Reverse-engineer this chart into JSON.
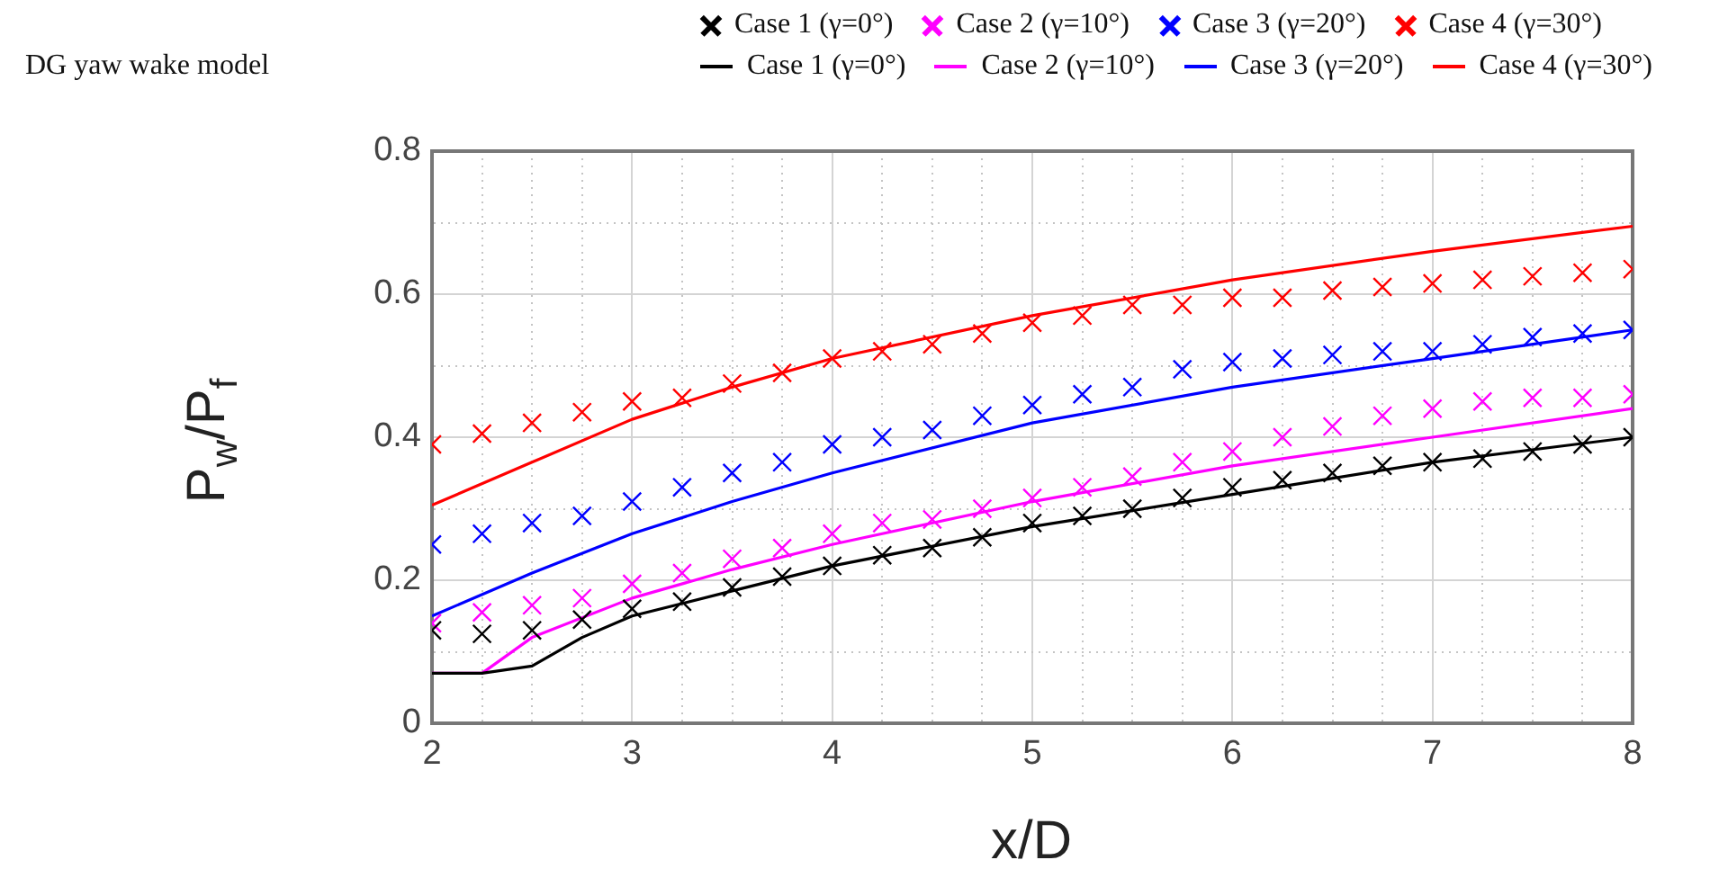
{
  "chart_data": {
    "type": "scatter",
    "xlabel": "x/D",
    "ylabel": "P$_{w}$/P$_{f}$",
    "annotations": [
      "DG yaw wake model"
    ],
    "x": [
      2,
      2.25,
      2.5,
      2.75,
      3,
      3.25,
      3.5,
      3.75,
      4,
      4.25,
      4.5,
      4.75,
      5,
      5.25,
      5.5,
      5.75,
      6,
      6.25,
      6.5,
      6.75,
      7,
      7.25,
      7.5,
      7.75,
      8
    ],
    "series": [
      {
        "name": "Case 1 (γ=0°)",
        "type": "scatter",
        "marker": "cross",
        "color": "#000000",
        "values": [
          0.13,
          0.125,
          0.13,
          0.145,
          0.16,
          0.17,
          0.19,
          0.205,
          0.22,
          0.235,
          0.245,
          0.26,
          0.28,
          0.29,
          0.3,
          0.315,
          0.33,
          0.34,
          0.35,
          0.36,
          0.365,
          0.37,
          0.38,
          0.39,
          0.4
        ]
      },
      {
        "name": "Case 2 (γ=10°)",
        "type": "scatter",
        "marker": "cross",
        "color": "#ff00ff",
        "values": [
          0.14,
          0.155,
          0.165,
          0.175,
          0.195,
          0.21,
          0.23,
          0.245,
          0.265,
          0.28,
          0.285,
          0.3,
          0.315,
          0.33,
          0.345,
          0.365,
          0.38,
          0.4,
          0.415,
          0.43,
          0.44,
          0.45,
          0.455,
          0.455,
          0.46
        ]
      },
      {
        "name": "Case 3 (γ=20°)",
        "type": "scatter",
        "marker": "cross",
        "color": "#0000ff",
        "values": [
          0.25,
          0.265,
          0.28,
          0.29,
          0.31,
          0.33,
          0.35,
          0.365,
          0.39,
          0.4,
          0.41,
          0.43,
          0.445,
          0.46,
          0.47,
          0.495,
          0.505,
          0.51,
          0.515,
          0.52,
          0.52,
          0.53,
          0.54,
          0.545,
          0.55
        ]
      },
      {
        "name": "Case 4 (γ=30°)",
        "type": "scatter",
        "marker": "cross",
        "color": "#ff0000",
        "values": [
          0.39,
          0.405,
          0.42,
          0.435,
          0.45,
          0.455,
          0.475,
          0.49,
          0.51,
          0.52,
          0.53,
          0.545,
          0.56,
          0.57,
          0.585,
          0.585,
          0.595,
          0.595,
          0.605,
          0.61,
          0.615,
          0.62,
          0.625,
          0.63,
          0.635
        ]
      },
      {
        "name": "Case 1 (γ=0°)",
        "type": "line",
        "marker": "none",
        "line_style": "solid",
        "color": "#000000",
        "x": [
          2,
          2.25,
          2.5,
          2.75,
          3,
          3.5,
          4,
          5,
          6,
          7,
          8
        ],
        "values": [
          0.07,
          0.07,
          0.08,
          0.12,
          0.15,
          0.185,
          0.22,
          0.275,
          0.32,
          0.365,
          0.4
        ]
      },
      {
        "name": "Case 2 (γ=10°)",
        "type": "line",
        "marker": "none",
        "line_style": "solid",
        "color": "#ff00ff",
        "x": [
          2,
          2.25,
          2.5,
          3,
          3.5,
          4,
          5,
          6,
          7,
          8
        ],
        "values": [
          0.07,
          0.07,
          0.12,
          0.175,
          0.215,
          0.25,
          0.31,
          0.36,
          0.4,
          0.44
        ]
      },
      {
        "name": "Case 3 (γ=20°)",
        "type": "line",
        "marker": "none",
        "line_style": "solid",
        "color": "#0000ff",
        "x": [
          2,
          2.5,
          3,
          3.5,
          4,
          5,
          6,
          7,
          8
        ],
        "values": [
          0.15,
          0.21,
          0.265,
          0.31,
          0.35,
          0.42,
          0.47,
          0.51,
          0.55
        ]
      },
      {
        "name": "Case 4 (γ=30°)",
        "type": "line",
        "marker": "none",
        "line_style": "solid",
        "color": "#ff0000",
        "x": [
          2,
          2.5,
          3,
          3.5,
          4,
          5,
          6,
          7,
          8
        ],
        "values": [
          0.305,
          0.365,
          0.425,
          0.47,
          0.51,
          0.57,
          0.62,
          0.66,
          0.695
        ]
      }
    ],
    "xlim": [
      2,
      8
    ],
    "xticks": [
      2,
      {
        "value": 2.25,
        "label": null
      },
      {
        "value": 2.5,
        "label": null
      },
      {
        "value": 2.75,
        "label": null
      },
      3,
      {
        "value": 3.25,
        "label": null
      },
      {
        "value": 3.5,
        "label": null
      },
      {
        "value": 3.75,
        "label": null
      },
      4,
      {
        "value": 4.25,
        "label": null
      },
      {
        "value": 4.5,
        "label": null
      },
      {
        "value": 4.75,
        "label": null
      },
      5,
      {
        "value": 5.25,
        "label": null
      },
      {
        "value": 5.5,
        "label": null
      },
      {
        "value": 5.75,
        "label": null
      },
      6,
      {
        "value": 6.25,
        "label": null
      },
      {
        "value": 6.5,
        "label": null
      },
      {
        "value": 6.75,
        "label": null
      },
      7,
      {
        "value": 7.25,
        "label": null
      },
      {
        "value": 7.5,
        "label": null
      },
      {
        "value": 7.75,
        "label": null
      },
      8
    ],
    "ylim": [
      0,
      0.8
    ],
    "yticks": [
      0,
      {
        "value": 0.1,
        "label": null
      },
      0.2,
      {
        "value": 0.3,
        "label": null
      },
      0.4,
      {
        "value": 0.5,
        "label": null
      },
      0.6,
      {
        "value": 0.7,
        "label": null
      },
      0.8
    ],
    "grid": true,
    "legend": "top"
  }
}
